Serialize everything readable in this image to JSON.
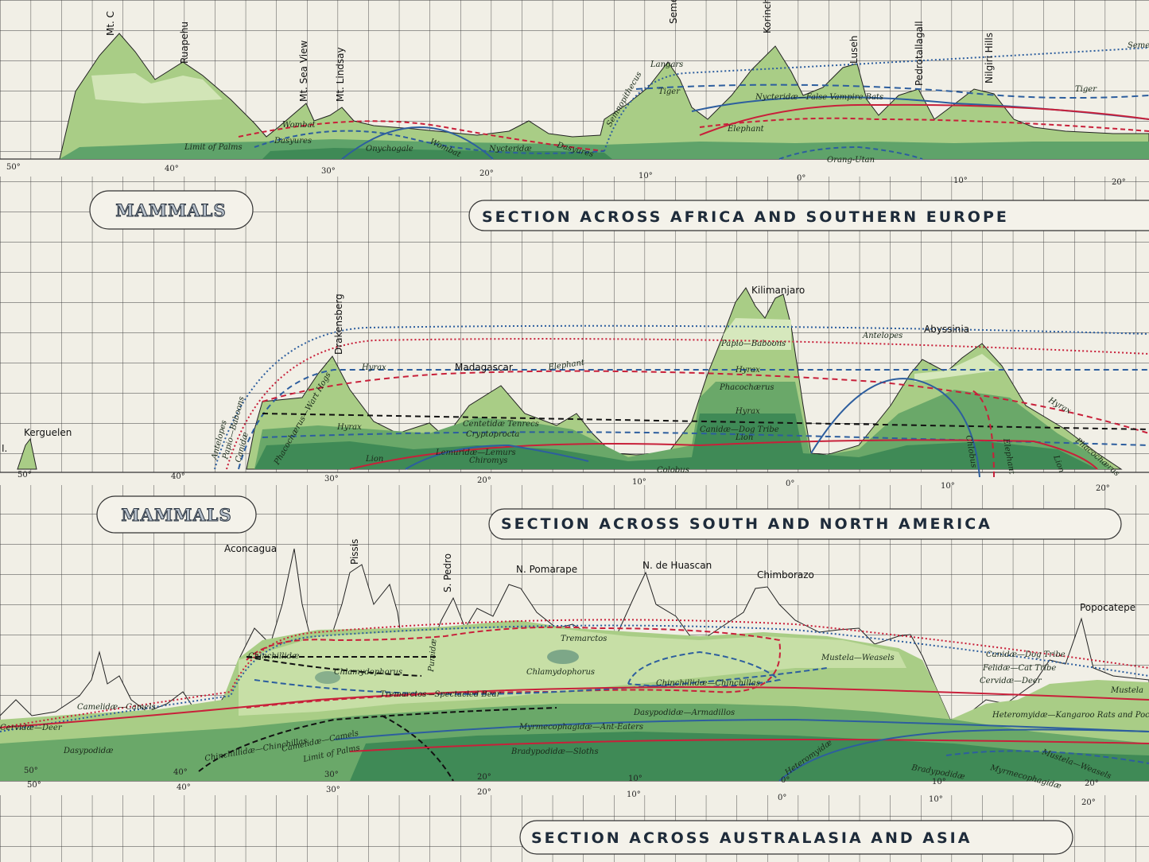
{
  "sections": [
    {
      "title": "",
      "peaks": [
        "Mt. C",
        "Ruapehu",
        "Mt. Sea View",
        "Mt. Lindsay",
        "Semeru",
        "Korinch",
        "Luseh",
        "Pedrotallagall",
        "Nilgiri Hills",
        "Semer"
      ],
      "animals": [
        "Wombat",
        "Dasyures",
        "Limit of Palms",
        "Onychogale",
        "Wombat",
        "Nycteridæ",
        "Dasyures",
        "Semnopithecus",
        "Langars",
        "Tiger",
        "Nycteridæ—False Vampire Bats",
        "Elephant",
        "Orang-Utan",
        "Tiger"
      ],
      "degrees": [
        "50°",
        "40°",
        "30°",
        "20°",
        "10°",
        "0°",
        "10°",
        "20°"
      ]
    },
    {
      "badge": "MAMMALS",
      "title": "SECTION ACROSS AFRICA AND SOUTHERN EUROPE",
      "peaks": [
        "Kerguelen",
        "Drakensberg",
        "Madagascar",
        "Kilimanjaro",
        "Abyssinia"
      ],
      "edge_label": "I.",
      "animals": [
        "Antelopes",
        "Papio—Baboons",
        "Canidæ",
        "Phacochærus—Wart Hogs",
        "Hyrax",
        "Hyrax",
        "Elephant",
        "Centetidæ Tenrecs",
        "Cryptoprocta",
        "Lemuridæ—Lemurs",
        "Chiromys",
        "Lion",
        "Antelopes",
        "Papio—Baboons",
        "Hyrax",
        "Phacochærus",
        "Hyrax",
        "Canidæ—Dog Tribe",
        "Lion",
        "Colobus",
        "Chlobus",
        "Elephant",
        "Lion",
        "Hyrax",
        "Phacochærus"
      ],
      "degrees": [
        "50°",
        "40°",
        "30°",
        "20°",
        "10°",
        "0°",
        "10°",
        "20°"
      ]
    },
    {
      "badge": "MAMMALS",
      "title": "SECTION ACROSS SOUTH AND NORTH AMERICA",
      "peaks": [
        "Aconcagua",
        "Pissis",
        "S. Pedro",
        "N. Pomarape",
        "N. de Huascan",
        "Chimborazo",
        "Popocatepe"
      ],
      "animals": [
        "Chinchillidæ",
        "Chlamydophorus",
        "Pumidæ",
        "Tremarctos",
        "Chlamydophorus",
        "Chinchillidæ—Chinchillas",
        "Mustela—Weasels",
        "Tremarctos—Spectacled Bear",
        "Dasypodidæ—Armadillos",
        "Myrmecophagidæ—Ant-Eaters",
        "Bradypodidæ—Sloths",
        "Camelidæ—Camels",
        "Cervidæ—Deer",
        "Dasypodidæ",
        "Chinchillidæ—Chinchillas",
        "Camelidæ—Camels",
        "Limit of Palms",
        "Heteromyidæ",
        "Bradypodidæ",
        "Myrmecophagidæ",
        "Canidæ—Dog Tribe",
        "Felidæ—Cat Tribe",
        "Cervidæ—Deer",
        "Mustela",
        "Heteromyidæ—Kangaroo Rats and Pocket Mice",
        "Mustela—Weasels"
      ],
      "degrees_a": [
        "50°",
        "40°",
        "30°",
        "20°",
        "10°",
        "0°",
        "10°",
        "20°"
      ],
      "degrees_b": [
        "50°",
        "40°",
        "30°",
        "20°",
        "10°",
        "0°",
        "10°",
        "20°"
      ]
    },
    {
      "title": "SECTION ACROSS AUSTRALASIA AND ASIA"
    }
  ],
  "colors": {
    "paper": "#f1efe6",
    "grid": "#3a3a3a",
    "land_light": "#bcd79a",
    "land_mid": "#95bf72",
    "land_dark": "#4f9a63",
    "red_line": "#c8203a",
    "blue_line": "#2d5e9e",
    "black_line": "#111111"
  }
}
